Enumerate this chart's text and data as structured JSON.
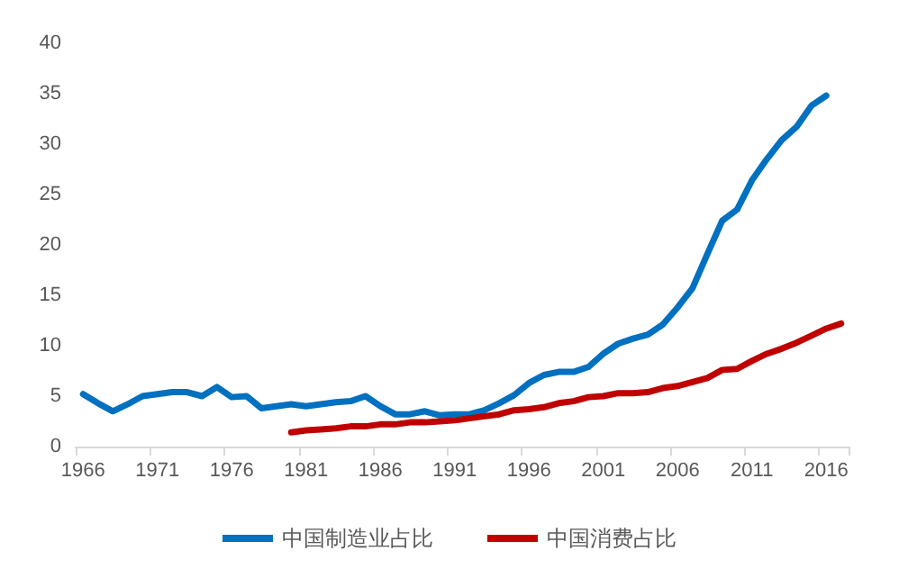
{
  "chart_data": {
    "type": "line",
    "categories": [
      "1966",
      null,
      null,
      null,
      null,
      "1971",
      null,
      null,
      null,
      null,
      "1976",
      null,
      null,
      null,
      null,
      "1981",
      null,
      null,
      null,
      null,
      "1986",
      null,
      null,
      null,
      null,
      "1991",
      null,
      null,
      null,
      null,
      "1996",
      null,
      null,
      null,
      null,
      "2001",
      null,
      null,
      null,
      null,
      "2006",
      null,
      null,
      null,
      null,
      "2011",
      null,
      null,
      null,
      null,
      "2016",
      null
    ],
    "series": [
      {
        "name": "中国制造业占比",
        "color": "#0070c0",
        "values": [
          5.2,
          4.3,
          3.5,
          4.2,
          5.0,
          5.2,
          5.4,
          5.4,
          5.0,
          5.9,
          4.9,
          5.0,
          3.8,
          4.0,
          4.2,
          4.0,
          4.2,
          4.4,
          4.5,
          5.0,
          4.0,
          3.2,
          3.2,
          3.5,
          3.1,
          3.2,
          3.2,
          3.6,
          4.3,
          5.1,
          6.3,
          7.1,
          7.4,
          7.4,
          7.9,
          9.2,
          10.2,
          10.7,
          11.1,
          12.1,
          13.8,
          15.7,
          19.1,
          22.4,
          23.5,
          26.4,
          28.5,
          30.4,
          31.7,
          33.8,
          34.8,
          null
        ]
      },
      {
        "name": "中国消费占比",
        "color": "#c00000",
        "values": [
          null,
          null,
          null,
          null,
          null,
          null,
          null,
          null,
          null,
          null,
          null,
          null,
          null,
          null,
          1.4,
          1.6,
          1.7,
          1.8,
          2.0,
          2.0,
          2.2,
          2.2,
          2.4,
          2.4,
          2.5,
          2.6,
          2.8,
          3.0,
          3.2,
          3.6,
          3.7,
          3.9,
          4.3,
          4.5,
          4.9,
          5.0,
          5.3,
          5.3,
          5.4,
          5.8,
          6.0,
          6.4,
          6.8,
          7.6,
          7.7,
          8.5,
          9.2,
          9.7,
          10.3,
          11.0,
          11.7,
          12.2
        ]
      }
    ],
    "ylim": [
      0,
      40
    ],
    "yticks": [
      0,
      5,
      10,
      15,
      20,
      25,
      30,
      35,
      40
    ],
    "grid": false,
    "legend": "bottom",
    "marker": "none",
    "line_style": "solid"
  }
}
